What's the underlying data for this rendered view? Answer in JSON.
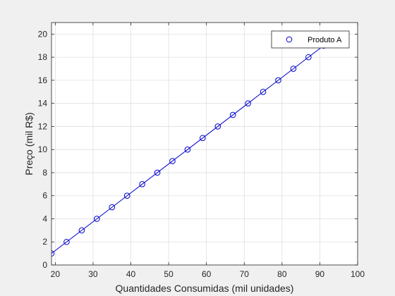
{
  "chart_data": {
    "type": "scatter",
    "title": "",
    "xlabel": "Quantidades Consumidas (mil unidades)",
    "ylabel": "Preço (mil R$)",
    "xlim": [
      19,
      100
    ],
    "ylim": [
      0,
      21
    ],
    "x_ticks": [
      20,
      30,
      40,
      50,
      60,
      70,
      80,
      90,
      100
    ],
    "y_ticks": [
      0,
      2,
      4,
      6,
      8,
      10,
      12,
      14,
      16,
      18,
      20
    ],
    "grid": true,
    "legend_position": "top-right",
    "series": [
      {
        "name": "Produto A",
        "marker": "circle",
        "color": "#0000cc",
        "line": true,
        "x": [
          19,
          23,
          27,
          31,
          35,
          39,
          43,
          47,
          51,
          55,
          59,
          63,
          67,
          71,
          75,
          79,
          83,
          87,
          91,
          95
        ],
        "y": [
          1,
          2,
          3,
          4,
          5,
          6,
          7,
          8,
          9,
          10,
          11,
          12,
          13,
          14,
          15,
          16,
          17,
          18,
          19,
          20
        ]
      }
    ]
  },
  "colors": {
    "figure_background": "#f0f0f0",
    "axes_background": "#ffffff",
    "grid": "#dfdfdf",
    "axis": "#262626"
  }
}
